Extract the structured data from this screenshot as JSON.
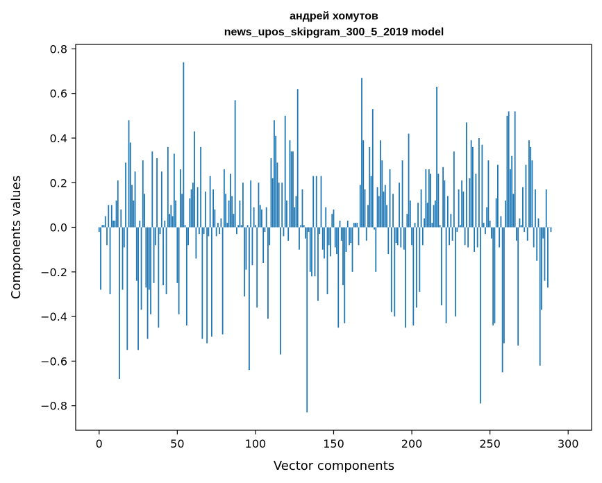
{
  "chart_data": {
    "type": "bar",
    "title": "андрей хомутов",
    "subtitle": "news_upos_skipgram_300_5_2019 model",
    "xlabel": "Vector components",
    "ylabel": "Components values",
    "xlim": [
      -15,
      315
    ],
    "ylim": [
      -0.91,
      0.82
    ],
    "xticks": [
      0,
      50,
      100,
      150,
      200,
      250,
      300
    ],
    "xtick_labels": [
      "0",
      "50",
      "100",
      "150",
      "200",
      "250",
      "300"
    ],
    "yticks": [
      -0.8,
      -0.6,
      -0.4,
      -0.2,
      0.0,
      0.2,
      0.4,
      0.6,
      0.8
    ],
    "ytick_labels": [
      "−0.8",
      "−0.6",
      "−0.4",
      "−0.2",
      "0.0",
      "0.2",
      "0.4",
      "0.6",
      "0.8"
    ],
    "bar_color": "#1f77b4",
    "grid": false,
    "legend": "none",
    "values": [
      -0.02,
      -0.28,
      0.01,
      0.01,
      0.05,
      -0.08,
      0.1,
      -0.3,
      0.1,
      0.03,
      0.03,
      0.12,
      0.21,
      -0.68,
      0.08,
      -0.28,
      -0.09,
      0.29,
      -0.55,
      0.48,
      0.38,
      0.19,
      0.12,
      0.25,
      -0.24,
      -0.55,
      0.03,
      -0.37,
      0.3,
      0.15,
      -0.27,
      -0.5,
      -0.28,
      -0.39,
      0.34,
      -0.25,
      -0.08,
      0.31,
      -0.45,
      -0.03,
      0.25,
      -0.26,
      0.03,
      -0.3,
      0.36,
      0.06,
      0.1,
      0.05,
      0.33,
      0.12,
      -0.25,
      -0.39,
      0.26,
      0.15,
      0.74,
      0.01,
      -0.44,
      -0.08,
      0.13,
      0.17,
      0.2,
      0.43,
      -0.14,
      0.18,
      -0.03,
      0.36,
      -0.5,
      -0.03,
      0.16,
      -0.52,
      -0.04,
      0.23,
      -0.49,
      0.17,
      0.08,
      -0.04,
      0.02,
      -0.03,
      0.04,
      -0.48,
      0.26,
      0.15,
      0.02,
      0.12,
      0.24,
      0.14,
      0.06,
      0.57,
      -0.03,
      0.01,
      0.12,
      0.01,
      0.2,
      -0.31,
      -0.19,
      0.01,
      -0.64,
      0.21,
      -0.17,
      0.09,
      0.01,
      -0.36,
      0.2,
      0.1,
      0.08,
      -0.16,
      -0.02,
      0.09,
      -0.41,
      -0.08,
      0.31,
      0.22,
      0.48,
      0.41,
      0.29,
      0.2,
      -0.57,
      0.2,
      -0.04,
      0.5,
      0.12,
      -0.06,
      0.39,
      0.34,
      0.34,
      0.09,
      0.14,
      0.62,
      -0.1,
      0.01,
      0.17,
      0.01,
      -0.05,
      -0.83,
      -0.02,
      -0.2,
      -0.22,
      0.23,
      -0.22,
      0.23,
      -0.33,
      -0.03,
      0.23,
      -0.1,
      -0.14,
      0.09,
      -0.3,
      -0.08,
      -0.13,
      0.06,
      0.08,
      -0.09,
      -0.12,
      -0.45,
      0.03,
      -0.06,
      -0.26,
      -0.43,
      -0.11,
      0.03,
      -0.08,
      -0.07,
      -0.2,
      0.02,
      0.02,
      0.02,
      -0.08,
      0.19,
      0.67,
      0.39,
      0.17,
      -0.06,
      0.1,
      0.36,
      0.23,
      0.53,
      -0.01,
      -0.2,
      0.18,
      0.14,
      0.39,
      0.3,
      0.16,
      0.19,
      0.1,
      -0.12,
      0.26,
      -0.38,
      0.15,
      -0.4,
      -0.07,
      -0.08,
      0.2,
      -0.09,
      0.3,
      -0.1,
      -0.45,
      0.06,
      0.42,
      0.12,
      -0.08,
      -0.44,
      0.02,
      -0.36,
      0.11,
      -0.29,
      0.17,
      -0.08,
      0.04,
      0.26,
      0.11,
      0.26,
      0.24,
      0.02,
      0.1,
      0.12,
      0.63,
      0.24,
      0.01,
      -0.35,
      0.27,
      0.21,
      -0.43,
      0.14,
      -0.08,
      0.06,
      -0.06,
      0.34,
      -0.4,
      -0.02,
      0.17,
      0.01,
      0.21,
      0.16,
      -0.08,
      0.47,
      -0.09,
      0.22,
      0.39,
      0.36,
      -0.11,
      0.24,
      -0.09,
      0.4,
      -0.79,
      0.37,
      0.02,
      -0.03,
      0.09,
      0.3,
      0.03,
      -0.05,
      -0.44,
      -0.43,
      0.13,
      0.28,
      -0.09,
      0.05,
      -0.65,
      -0.52,
      0.12,
      0.5,
      0.52,
      0.26,
      0.32,
      0.15,
      0.52,
      -0.06,
      -0.53,
      0.04,
      0.01,
      0.18,
      -0.02,
      0.28,
      -0.06,
      0.39,
      0.36,
      0.3,
      -0.09,
      0.17,
      -0.15,
      0.04,
      -0.62,
      -0.37,
      -0.05,
      -0.24,
      0.17,
      -0.27,
      0.0,
      -0.02
    ]
  }
}
